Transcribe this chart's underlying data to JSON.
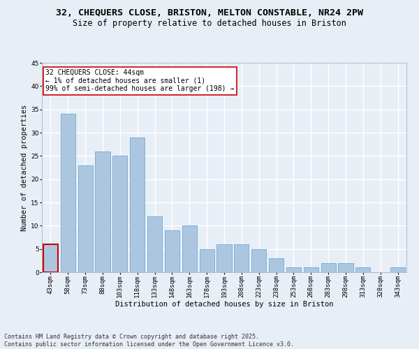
{
  "title1": "32, CHEQUERS CLOSE, BRISTON, MELTON CONSTABLE, NR24 2PW",
  "title2": "Size of property relative to detached houses in Briston",
  "xlabel": "Distribution of detached houses by size in Briston",
  "ylabel": "Number of detached properties",
  "categories": [
    "43sqm",
    "58sqm",
    "73sqm",
    "88sqm",
    "103sqm",
    "118sqm",
    "133sqm",
    "148sqm",
    "163sqm",
    "178sqm",
    "193sqm",
    "208sqm",
    "223sqm",
    "238sqm",
    "253sqm",
    "268sqm",
    "283sqm",
    "298sqm",
    "313sqm",
    "328sqm",
    "343sqm"
  ],
  "values": [
    6,
    34,
    23,
    26,
    25,
    29,
    12,
    9,
    10,
    5,
    6,
    6,
    5,
    3,
    1,
    1,
    2,
    2,
    1,
    0,
    1
  ],
  "bar_color": "#adc6e0",
  "bar_edge_color": "#6aaad4",
  "highlight_bar_index": 0,
  "highlight_color": "#cc0000",
  "annotation_text": "32 CHEQUERS CLOSE: 44sqm\n← 1% of detached houses are smaller (1)\n99% of semi-detached houses are larger (198) →",
  "annotation_box_color": "#ffffff",
  "annotation_box_edge_color": "#cc0000",
  "ylim": [
    0,
    45
  ],
  "yticks": [
    0,
    5,
    10,
    15,
    20,
    25,
    30,
    35,
    40,
    45
  ],
  "footer": "Contains HM Land Registry data © Crown copyright and database right 2025.\nContains public sector information licensed under the Open Government Licence v3.0.",
  "bg_color": "#e8eef6",
  "grid_color": "#ffffff",
  "title_fontsize": 9.5,
  "subtitle_fontsize": 8.5,
  "axis_label_fontsize": 7.5,
  "tick_fontsize": 6.5,
  "annotation_fontsize": 7,
  "footer_fontsize": 6
}
